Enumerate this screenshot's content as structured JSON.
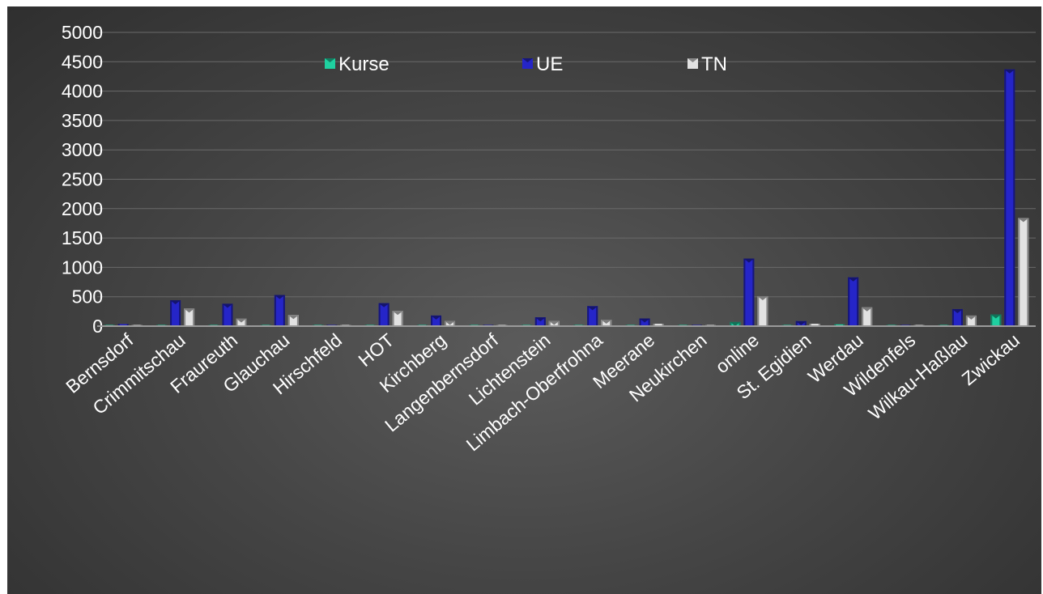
{
  "chart_data": {
    "type": "bar",
    "title": "",
    "xlabel": "",
    "ylabel": "",
    "ylim": [
      0,
      5000
    ],
    "yticks": [
      "0",
      "500",
      "1000",
      "1500",
      "2000",
      "2500",
      "3000",
      "3500",
      "4000",
      "4500",
      "5000"
    ],
    "grid": true,
    "legend_position": "top",
    "categories": [
      "Bernsdorf",
      "Crimmitschau",
      "Fraureuth",
      "Glauchau",
      "Hirschfeld",
      "HOT",
      "Kirchberg",
      "Langenbernsdorf",
      "Lichtenstein",
      "Limbach-Oberfrohna",
      "Meerane",
      "Neukirchen",
      "online",
      "St. Egidien",
      "Werdau",
      "Wildenfels",
      "Wilkau-Haßlau",
      "Zwickau"
    ],
    "series": [
      {
        "name": "Kurse",
        "color": "#1fd0a0",
        "values": [
          1,
          10,
          5,
          12,
          0,
          8,
          5,
          1,
          4,
          8,
          3,
          0,
          70,
          3,
          30,
          1,
          8,
          200
        ]
      },
      {
        "name": "UE",
        "color": "#2525c8",
        "values": [
          35,
          440,
          380,
          530,
          5,
          390,
          180,
          5,
          150,
          340,
          130,
          8,
          1150,
          85,
          830,
          15,
          290,
          4370
        ]
      },
      {
        "name": "TN",
        "color": "#e2e2e2",
        "values": [
          15,
          300,
          130,
          190,
          3,
          260,
          90,
          18,
          90,
          110,
          40,
          5,
          510,
          40,
          320,
          15,
          180,
          1840
        ]
      }
    ]
  }
}
